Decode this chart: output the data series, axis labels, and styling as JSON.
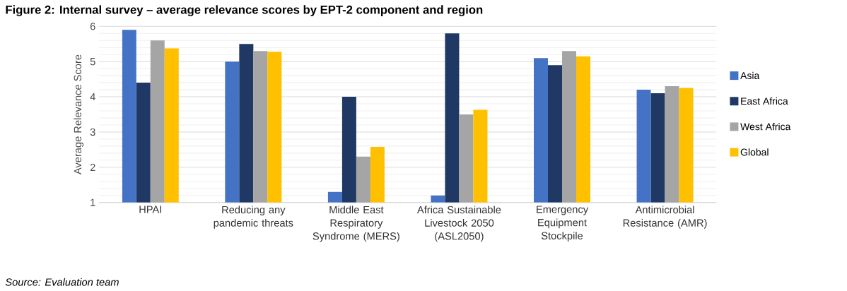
{
  "chart_data": {
    "type": "bar",
    "title": "Figure 2: Internal survey – average relevance scores by EPT-2 component and region",
    "ylabel": "Average Relevance Score",
    "categories": [
      "HPAI",
      "Reducing any pandemic threats",
      "Middle East Respiratory Syndrome (MERS)",
      "Africa Sustainable Livestock 2050 (ASL2050)",
      "Emergency Equipment Stockpile",
      "Antimicrobial Resistance (AMR)"
    ],
    "series": [
      {
        "name": "Asia",
        "color": "#4472c4",
        "values": [
          5.9,
          5.0,
          1.3,
          1.2,
          5.1,
          4.2
        ]
      },
      {
        "name": "East Africa",
        "color": "#203864",
        "values": [
          4.4,
          5.5,
          4.0,
          5.8,
          4.9,
          4.1
        ]
      },
      {
        "name": "West Africa",
        "color": "#a5a5a5",
        "values": [
          5.6,
          5.3,
          2.3,
          3.5,
          5.3,
          4.3
        ]
      },
      {
        "name": "Global",
        "color": "#ffc000",
        "values": [
          5.38,
          5.28,
          2.58,
          3.63,
          5.15,
          4.25
        ]
      }
    ],
    "ylim": [
      1,
      6
    ],
    "yticks": [
      1,
      2,
      3,
      4,
      5,
      6
    ],
    "grid": "y",
    "legend": "right",
    "annotations": [
      "Source: Evaluation team"
    ]
  }
}
